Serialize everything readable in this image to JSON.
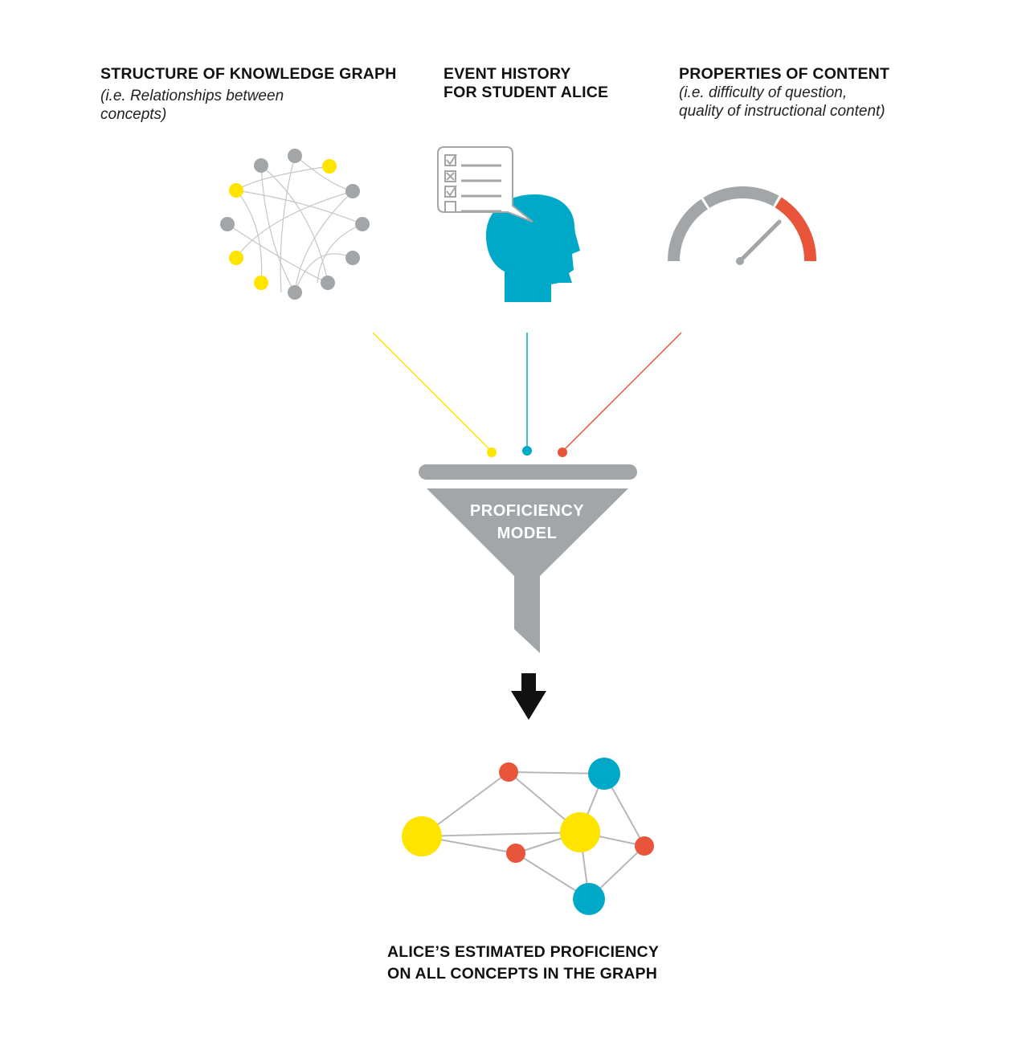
{
  "inputs": [
    {
      "title": "STRUCTURE OF KNOWLEDGE GRAPH",
      "subtitle_lines": [
        "(i.e. Relationships between",
        "concepts)"
      ],
      "icon": "circular-graph-icon",
      "connector_color": "#FFE400"
    },
    {
      "title_lines": [
        "EVENT HISTORY",
        "FOR STUDENT ALICE"
      ],
      "icon": "student-head-checklist-icon",
      "connector_color": "#00A9C8"
    },
    {
      "title": "PROPERTIES OF CONTENT",
      "subtitle_lines": [
        "(i.e. difficulty of question,",
        "quality of instructional content)"
      ],
      "icon": "gauge-icon",
      "connector_color": "#E8553A"
    }
  ],
  "funnel": {
    "label_lines": [
      "PROFICIENCY",
      "MODEL"
    ]
  },
  "output": {
    "arrow": "arrow-down-icon",
    "icon": "proficiency-graph-icon",
    "label_lines": [
      "ALICE’S ESTIMATED PROFICIENCY",
      "ON ALL CONCEPTS IN THE GRAPH"
    ]
  },
  "colors": {
    "yellow": "#FFE400",
    "teal": "#00A9C8",
    "orange": "#E8553A",
    "gray": "#A2A6A8",
    "line_gray": "#B5B8BA",
    "text": "#111111"
  }
}
